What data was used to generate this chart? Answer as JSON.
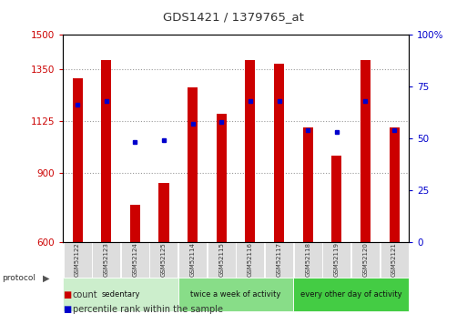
{
  "title": "GDS1421 / 1379765_at",
  "samples": [
    "GSM52122",
    "GSM52123",
    "GSM52124",
    "GSM52125",
    "GSM52114",
    "GSM52115",
    "GSM52116",
    "GSM52117",
    "GSM52118",
    "GSM52119",
    "GSM52120",
    "GSM52121"
  ],
  "counts": [
    1310,
    1390,
    760,
    855,
    1270,
    1155,
    1390,
    1375,
    1095,
    975,
    1390,
    1095
  ],
  "percentiles": [
    66,
    68,
    48,
    49,
    57,
    58,
    68,
    68,
    54,
    53,
    68,
    54
  ],
  "ylim_left": [
    600,
    1500
  ],
  "ylim_right": [
    0,
    100
  ],
  "yticks_left": [
    600,
    900,
    1125,
    1350,
    1500
  ],
  "yticks_right": [
    0,
    25,
    50,
    75,
    100
  ],
  "bar_color": "#cc0000",
  "dot_color": "#0000cc",
  "groups": [
    {
      "label": "sedentary",
      "start": 0,
      "end": 4,
      "color": "#cceecc"
    },
    {
      "label": "twice a week of activity",
      "start": 4,
      "end": 8,
      "color": "#88dd88"
    },
    {
      "label": "every other day of activity",
      "start": 8,
      "end": 12,
      "color": "#44cc44"
    }
  ],
  "protocol_label": "protocol",
  "legend_count_label": "count",
  "legend_pct_label": "percentile rank within the sample",
  "grid_color": "#999999",
  "background_color": "#ffffff",
  "plot_bg": "#ffffff",
  "bar_bottom": 600,
  "bar_width": 0.35
}
